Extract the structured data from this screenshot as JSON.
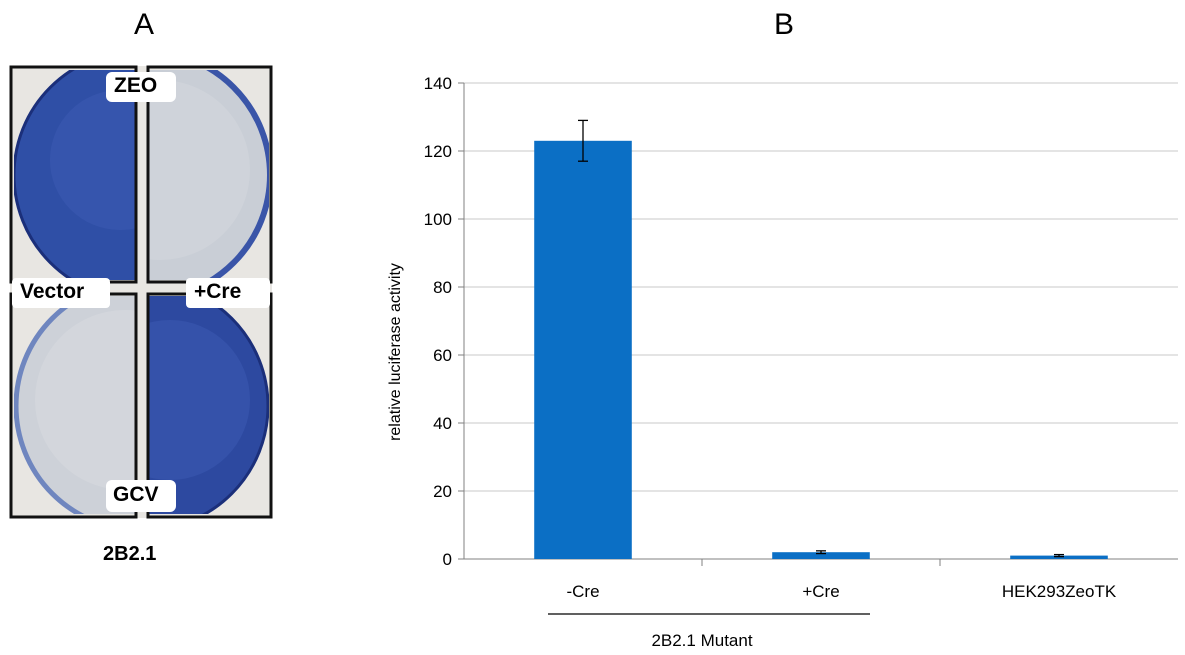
{
  "panels": {
    "a_letter": "A",
    "b_letter": "B"
  },
  "plates": {
    "top_label": "ZEO",
    "bottom_label": "GCV",
    "left_label": "Vector",
    "right_label": "+Cre",
    "caption": "2B2.1",
    "colors": {
      "stain": "#3a52a8",
      "stain_dark": "#1e3484",
      "clear": "#c8ccd2",
      "frame": "#111111"
    }
  },
  "chart_data": {
    "type": "bar",
    "categories": [
      "-Cre",
      "+Cre",
      "HEK293ZeoTK"
    ],
    "values": [
      123,
      2,
      1
    ],
    "errors": [
      6,
      0.4,
      0.3
    ],
    "title": "",
    "xlabel": "",
    "ylabel": "relative luciferase activity",
    "ylim": [
      0,
      140
    ],
    "yticks": [
      0,
      20,
      40,
      60,
      80,
      100,
      120,
      140
    ],
    "grid": true,
    "bar_color": "#0b6fc5",
    "group_label": "2B2.1 Mutant"
  }
}
